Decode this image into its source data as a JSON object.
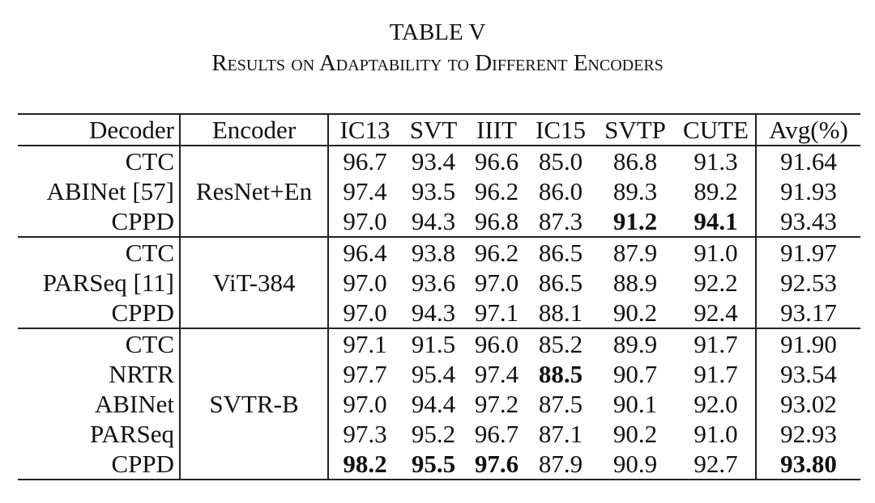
{
  "header": {
    "title": "TABLE V",
    "subtitle": "Results on Adaptability to Different Encoders"
  },
  "table": {
    "columns": [
      "Decoder",
      "Encoder",
      "IC13",
      "SVT",
      "IIIT",
      "IC15",
      "SVTP",
      "CUTE",
      "Avg(%)"
    ],
    "groups": [
      {
        "encoder": "ResNet+En",
        "rows": [
          {
            "decoder": "CTC",
            "cells": [
              "96.7",
              "93.4",
              "96.6",
              "85.0",
              "86.8",
              "91.3",
              "91.64"
            ]
          },
          {
            "decoder": "ABINet [57]",
            "cells": [
              "97.4",
              "93.5",
              "96.2",
              "86.0",
              "89.3",
              "89.2",
              "91.93"
            ]
          },
          {
            "decoder": "CPPD",
            "cells": [
              "97.0",
              "94.3",
              "96.8",
              "87.3",
              {
                "text": "91.2",
                "bold": true
              },
              {
                "text": "94.1",
                "bold": true
              },
              "93.43"
            ]
          }
        ]
      },
      {
        "encoder": "ViT-384",
        "rows": [
          {
            "decoder": "CTC",
            "cells": [
              "96.4",
              "93.8",
              "96.2",
              "86.5",
              "87.9",
              "91.0",
              "91.97"
            ]
          },
          {
            "decoder": "PARSeq [11]",
            "cells": [
              "97.0",
              "93.6",
              "97.0",
              "86.5",
              "88.9",
              "92.2",
              "92.53"
            ]
          },
          {
            "decoder": "CPPD",
            "cells": [
              "97.0",
              "94.3",
              "97.1",
              "88.1",
              "90.2",
              "92.4",
              "93.17"
            ]
          }
        ]
      },
      {
        "encoder": "SVTR-B",
        "rows": [
          {
            "decoder": "CTC",
            "cells": [
              "97.1",
              "91.5",
              "96.0",
              "85.2",
              "89.9",
              "91.7",
              "91.90"
            ]
          },
          {
            "decoder": "NRTR",
            "cells": [
              "97.7",
              "95.4",
              "97.4",
              {
                "text": "88.5",
                "bold": true
              },
              "90.7",
              "91.7",
              "93.54"
            ]
          },
          {
            "decoder": "ABINet",
            "cells": [
              "97.0",
              "94.4",
              "97.2",
              "87.5",
              "90.1",
              "92.0",
              "93.02"
            ]
          },
          {
            "decoder": "PARSeq",
            "cells": [
              "97.3",
              "95.2",
              "96.7",
              "87.1",
              "90.2",
              "91.0",
              "92.93"
            ]
          },
          {
            "decoder": "CPPD",
            "cells": [
              {
                "text": "98.2",
                "bold": true
              },
              {
                "text": "95.5",
                "bold": true
              },
              {
                "text": "97.6",
                "bold": true
              },
              "87.9",
              "90.9",
              "92.7",
              {
                "text": "93.80",
                "bold": true
              }
            ]
          }
        ]
      }
    ]
  }
}
